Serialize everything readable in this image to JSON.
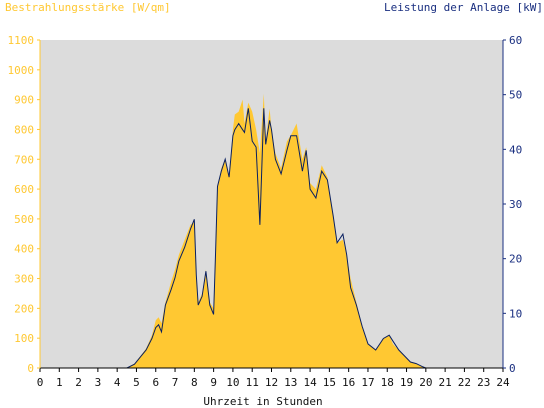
{
  "colors": {
    "irradiance": "#ffc832",
    "left_axis_text": "#ffc832",
    "power_line": "#0a2060",
    "right_axis_text": "#1a2f80",
    "plot_bg": "#dcdcdc"
  },
  "chart_data": {
    "type": "area",
    "left_title": "Bestrahlungsstärke [W/qm]",
    "right_title": "Leistung der Anlage [kW]",
    "xlabel": "Uhrzeit in Stunden",
    "xlim": [
      0,
      24
    ],
    "ylim_left": [
      0,
      1100
    ],
    "ylim_right": [
      0,
      60
    ],
    "x_ticks": [
      "0",
      "1",
      "2",
      "3",
      "4",
      "5",
      "6",
      "7",
      "8",
      "9",
      "10",
      "11",
      "12",
      "13",
      "14",
      "15",
      "16",
      "17",
      "18",
      "19",
      "20",
      "21",
      "22",
      "23",
      "24"
    ],
    "y_left_ticks": [
      "0",
      "100",
      "200",
      "300",
      "400",
      "500",
      "600",
      "700",
      "800",
      "900",
      "1000",
      "1100"
    ],
    "y_right_ticks": [
      "0",
      "10",
      "20",
      "30",
      "40",
      "50",
      "60"
    ],
    "grid": false,
    "series": [
      {
        "name": "Bestrahlungsstärke [W/qm]",
        "axis": "left",
        "style": "filled-area",
        "x": [
          0,
          4.5,
          4.9,
          5.2,
          5.5,
          5.8,
          6.0,
          6.15,
          6.3,
          6.5,
          6.8,
          7.0,
          7.2,
          7.5,
          7.8,
          8.0,
          8.1,
          8.2,
          8.4,
          8.6,
          8.8,
          9.0,
          9.1,
          9.2,
          9.4,
          9.6,
          9.8,
          10.0,
          10.1,
          10.3,
          10.5,
          10.6,
          10.8,
          11.0,
          11.2,
          11.4,
          11.6,
          11.7,
          11.9,
          12.0,
          12.2,
          12.5,
          12.8,
          13.0,
          13.3,
          13.6,
          13.8,
          14.0,
          14.3,
          14.6,
          14.9,
          15.2,
          15.4,
          15.7,
          15.9,
          16.1,
          16.4,
          16.7,
          17.0,
          17.4,
          17.8,
          18.1,
          18.3,
          18.6,
          18.9,
          19.2,
          19.5,
          19.8,
          20.0,
          20.2,
          20.5,
          24
        ],
        "y": [
          0,
          0,
          15,
          40,
          65,
          110,
          160,
          170,
          150,
          220,
          290,
          330,
          380,
          430,
          480,
          490,
          300,
          220,
          250,
          330,
          220,
          200,
          420,
          600,
          670,
          700,
          640,
          800,
          850,
          860,
          900,
          820,
          890,
          860,
          800,
          720,
          920,
          760,
          870,
          800,
          720,
          670,
          760,
          780,
          820,
          700,
          740,
          620,
          600,
          680,
          640,
          510,
          420,
          430,
          380,
          300,
          220,
          140,
          80,
          60,
          100,
          110,
          80,
          60,
          40,
          20,
          15,
          5,
          0,
          0,
          0,
          0
        ]
      },
      {
        "name": "Leistung der Anlage [kW]",
        "axis": "right",
        "style": "line",
        "x": [
          0,
          4.5,
          4.9,
          5.2,
          5.5,
          5.8,
          6.0,
          6.15,
          6.3,
          6.5,
          6.8,
          7.0,
          7.2,
          7.5,
          7.8,
          8.0,
          8.1,
          8.2,
          8.4,
          8.6,
          8.8,
          9.0,
          9.1,
          9.2,
          9.4,
          9.6,
          9.8,
          10.0,
          10.1,
          10.3,
          10.5,
          10.6,
          10.8,
          11.0,
          11.2,
          11.4,
          11.6,
          11.7,
          11.9,
          12.0,
          12.2,
          12.5,
          12.8,
          13.0,
          13.3,
          13.6,
          13.8,
          14.0,
          14.3,
          14.6,
          14.9,
          15.2,
          15.4,
          15.7,
          15.9,
          16.1,
          16.4,
          16.7,
          17.0,
          17.4,
          17.8,
          18.1,
          18.3,
          18.6,
          18.9,
          19.2,
          19.5,
          19.8,
          20.0,
          20.2,
          20.5,
          24
        ],
        "y": [
          0,
          0,
          0.7,
          2.0,
          3.3,
          5.4,
          7.4,
          7.9,
          6.6,
          11.5,
          14.4,
          16.5,
          19.6,
          22.1,
          25.4,
          27.2,
          17.0,
          11.5,
          13.1,
          17.7,
          11.5,
          9.8,
          21.3,
          33.2,
          36.0,
          38.2,
          34.9,
          42.5,
          43.6,
          44.7,
          43.6,
          43.1,
          47.5,
          41.5,
          40.4,
          26.2,
          47.5,
          40.9,
          45.3,
          43.6,
          38.2,
          35.5,
          39.8,
          42.5,
          42.5,
          36.0,
          39.8,
          32.7,
          31.1,
          36.0,
          34.4,
          27.8,
          22.9,
          24.5,
          20.7,
          14.7,
          11.5,
          7.6,
          4.4,
          3.3,
          5.4,
          6.0,
          4.9,
          3.3,
          2.2,
          1.1,
          0.8,
          0.3,
          0,
          0,
          0,
          0
        ]
      }
    ]
  }
}
